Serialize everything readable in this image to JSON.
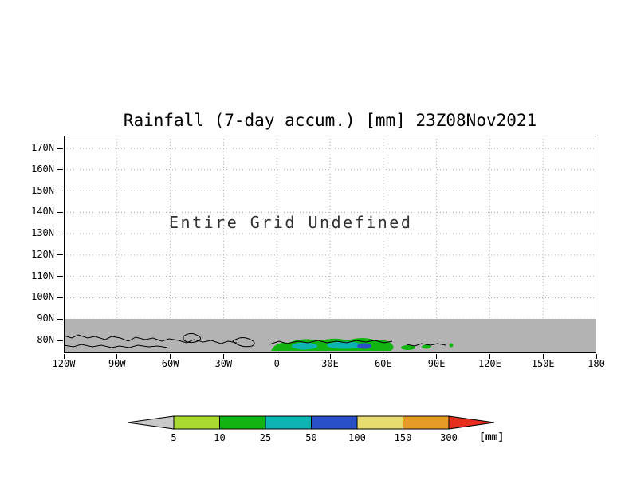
{
  "title": "Rainfall (7-day accum.) [mm] 23Z08Nov2021",
  "annotation": "Entire Grid Undefined",
  "axes": {
    "y_ticks": [
      "170N",
      "160N",
      "150N",
      "140N",
      "130N",
      "120N",
      "110N",
      "100N",
      "90N",
      "80N"
    ],
    "x_ticks": [
      "120W",
      "90W",
      "60W",
      "30W",
      "0",
      "30E",
      "60E",
      "90E",
      "120E",
      "150E",
      "180"
    ]
  },
  "colorbar": {
    "labels": [
      "5",
      "10",
      "25",
      "50",
      "100",
      "150",
      "300"
    ],
    "unit": "[mm]"
  },
  "chart_data": {
    "type": "heatmap",
    "subtype": "filled-contour-map",
    "title": "Rainfall (7-day accum.) [mm] 23Z08Nov2021",
    "status_annotation": "Entire Grid Undefined",
    "x_axis": {
      "ticks": [
        "120W",
        "90W",
        "60W",
        "30W",
        "0",
        "30E",
        "60E",
        "90E",
        "120E",
        "150E",
        "180"
      ],
      "range": [
        "120W",
        "180"
      ]
    },
    "y_axis": {
      "ticks": [
        "170N",
        "160N",
        "150N",
        "140N",
        "130N",
        "120N",
        "110N",
        "100N",
        "90N",
        "80N"
      ],
      "range": [
        "170N",
        "80N"
      ]
    },
    "levels_mm": [
      5,
      10,
      25,
      50,
      100,
      150,
      300
    ],
    "palette": [
      "#c9c9c9",
      "#aad932",
      "#12b412",
      "#0eb4b4",
      "#2a50c8",
      "#e8dc6e",
      "#e69b28",
      "#e62e1e"
    ],
    "undefined_band_color": "#b3b3b3",
    "grid": "dotted",
    "legend_position": "bottom",
    "unit": "[mm]",
    "features": [
      {
        "type": "undefined-region",
        "extent": "entire plot above 90N is blank; gray shaded band from 90N to bottom edge"
      },
      {
        "type": "coastline",
        "lon_range": [
          "120W",
          "60E"
        ],
        "lat_range": [
          "80N",
          "90N"
        ]
      },
      {
        "type": "rain-patch",
        "lon_range": [
          "0",
          "60E"
        ],
        "lat": "near 80N",
        "values_mm": "5-100",
        "colors": [
          "green",
          "cyan",
          "blue"
        ]
      }
    ]
  }
}
